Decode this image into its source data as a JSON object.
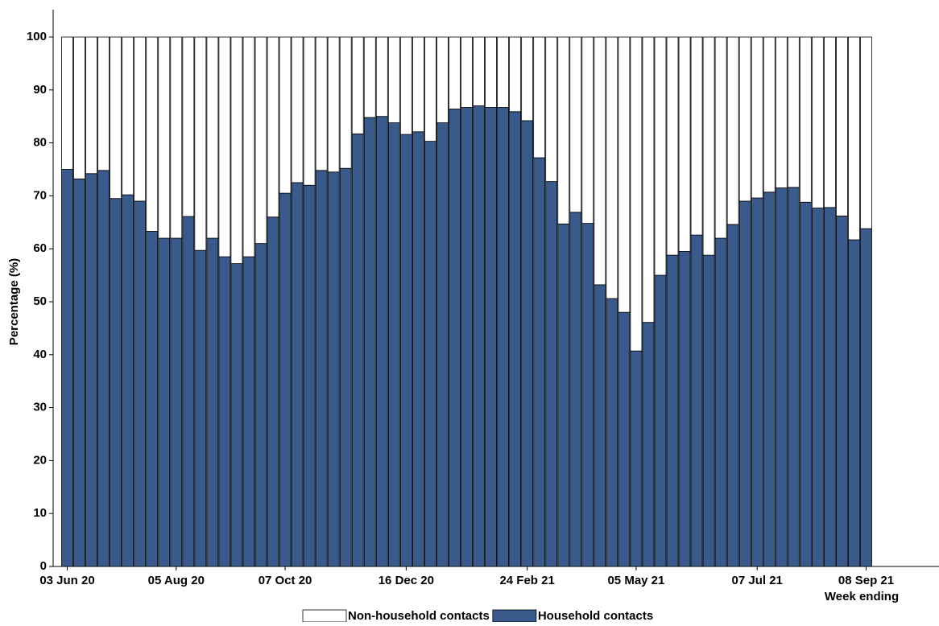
{
  "chart_data": {
    "type": "stacked_bar",
    "y_label": "Percentage (%)",
    "x_label": "Week ending",
    "categories": [
      "03 Jun 20",
      null,
      null,
      null,
      null,
      null,
      null,
      null,
      null,
      "05 Aug 20",
      null,
      null,
      null,
      null,
      null,
      null,
      null,
      null,
      "07 Oct 20",
      null,
      null,
      null,
      null,
      null,
      null,
      null,
      null,
      null,
      "16 Dec 20",
      null,
      null,
      null,
      null,
      null,
      null,
      null,
      null,
      null,
      "24 Feb 21",
      null,
      null,
      null,
      null,
      null,
      null,
      null,
      null,
      "05 May 21",
      null,
      null,
      null,
      null,
      null,
      null,
      null,
      null,
      null,
      "07 Jul 21",
      null,
      null,
      null,
      null,
      null,
      null,
      null,
      null,
      "08 Sep 21"
    ],
    "series": [
      {
        "name": "Non-household contacts",
        "color": "#ffffff",
        "values": [
          25,
          26.8,
          25.8,
          25.2,
          30.5,
          29.8,
          31,
          36.7,
          38,
          38,
          33.9,
          40.3,
          38,
          41.5,
          42.8,
          41.5,
          39,
          34,
          29.5,
          27.5,
          28,
          25.2,
          25.5,
          24.8,
          18.3,
          15.2,
          15,
          16.2,
          18.4,
          17.9,
          19.7,
          16.2,
          13.6,
          13.3,
          13,
          13.3,
          13.3,
          14.1,
          15.8,
          22.8,
          27.3,
          35.3,
          33.1,
          35.2,
          46.8,
          49.4,
          52,
          59.3,
          53.9,
          45,
          41.2,
          40.5,
          37.4,
          41.2,
          38,
          35.4,
          31,
          30.4,
          29.3,
          28.5,
          28.4,
          31.2,
          32.3,
          32.2,
          33.8,
          38.3,
          36.2
        ]
      },
      {
        "name": "Household contacts",
        "color": "#3a5a8c",
        "values": [
          75,
          73.2,
          74.2,
          74.8,
          69.5,
          70.2,
          69,
          63.3,
          62,
          62,
          66.1,
          59.7,
          62,
          58.5,
          57.2,
          58.5,
          61,
          66,
          70.5,
          72.5,
          72,
          74.8,
          74.5,
          75.2,
          81.7,
          84.8,
          85,
          83.8,
          81.6,
          82.1,
          80.3,
          83.8,
          86.4,
          86.7,
          87,
          86.7,
          86.7,
          85.9,
          84.2,
          77.2,
          72.7,
          64.7,
          66.9,
          64.8,
          53.2,
          50.6,
          48,
          40.7,
          46.1,
          55,
          58.8,
          59.5,
          62.6,
          58.8,
          62,
          64.6,
          69,
          69.6,
          70.7,
          71.5,
          71.6,
          68.8,
          67.7,
          67.8,
          66.2,
          61.7,
          63.8
        ]
      }
    ],
    "ylim": [
      0,
      100
    ],
    "yticks": [
      0,
      10,
      20,
      30,
      40,
      50,
      60,
      70,
      80,
      90,
      100
    ]
  }
}
